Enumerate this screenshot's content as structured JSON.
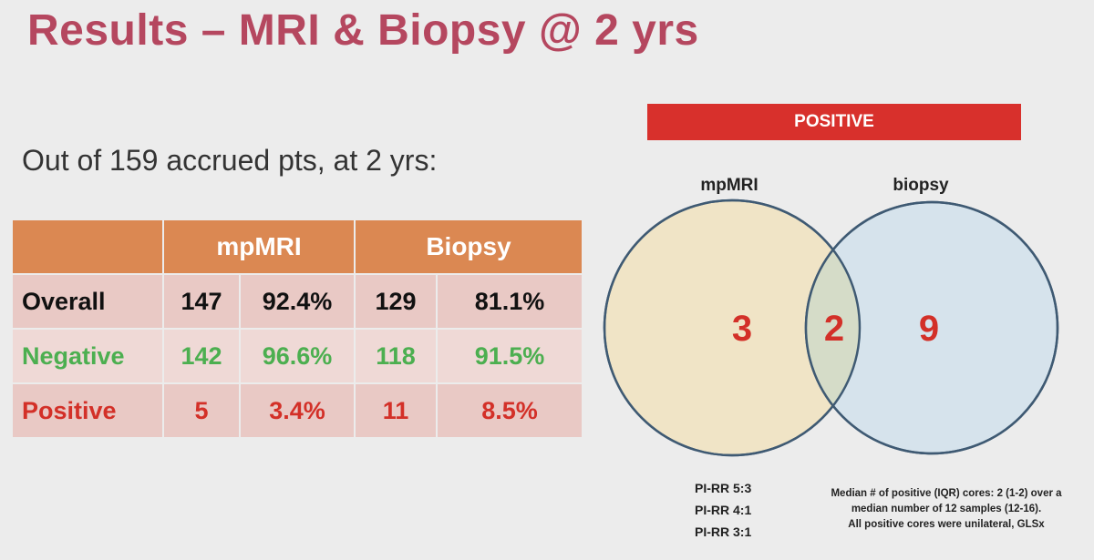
{
  "title": "Results – MRI & Biopsy @ 2 yrs",
  "subtitle": "Out of 159 accrued pts, at 2 yrs:",
  "table": {
    "headers": [
      "",
      "mpMRI",
      "Biopsy"
    ],
    "rows": [
      {
        "label": "Overall",
        "mri_n": "147",
        "mri_pct": "92.4%",
        "bx_n": "129",
        "bx_pct": "81.1%",
        "color": "#111111"
      },
      {
        "label": "Negative",
        "mri_n": "142",
        "mri_pct": "96.6%",
        "bx_n": "118",
        "bx_pct": "91.5%",
        "color": "#4caf50"
      },
      {
        "label": "Positive",
        "mri_n": "5",
        "mri_pct": "3.4%",
        "bx_n": "11",
        "bx_pct": "8.5%",
        "color": "#d33028"
      }
    ]
  },
  "venn": {
    "banner": "POSITIVE",
    "left_label": "mpMRI",
    "right_label": "biopsy",
    "left_only": "3",
    "overlap": "2",
    "right_only": "9",
    "left_color": "#f0e4c6",
    "right_color": "#d6e3ec",
    "overlap_color": "#d5dcc8"
  },
  "pirr": [
    "PI-RR 5:3",
    "PI-RR 4:1",
    "PI-RR 3:1"
  ],
  "note": [
    "Median # of positive (IQR) cores: 2 (1-2) over a",
    "median number of 12 samples (12-16).",
    "All positive cores were unilateral, GLSx"
  ],
  "colors": {
    "title": "#b5475f",
    "header": "#db8852",
    "banner": "#d8302c",
    "number_red": "#d33028"
  }
}
